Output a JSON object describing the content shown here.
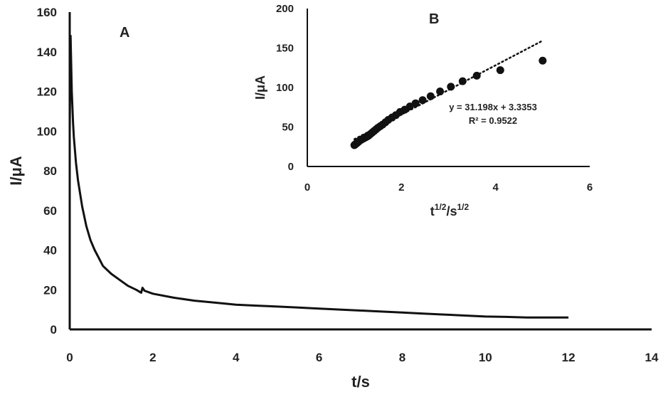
{
  "chart_data": [
    {
      "panel": "A",
      "type": "line",
      "xlabel": "t/s",
      "ylabel": "I/μA",
      "xlim": [
        0,
        14
      ],
      "ylim": [
        0,
        160
      ],
      "xticks": [
        0,
        2,
        4,
        6,
        8,
        10,
        12,
        14
      ],
      "yticks": [
        0,
        20,
        40,
        60,
        80,
        100,
        120,
        140,
        160
      ],
      "grid": false,
      "color": "#111111",
      "series": [
        {
          "x": [
            0.0,
            0.02,
            0.05,
            0.08,
            0.1,
            0.15,
            0.2,
            0.3,
            0.4,
            0.5,
            0.6,
            0.7,
            0.8,
            1.0,
            1.2,
            1.4,
            1.6,
            1.72,
            1.75,
            1.8,
            2.0,
            2.5,
            3.0,
            3.5,
            4.0,
            4.5,
            5.0,
            5.5,
            6.0,
            6.5,
            7.0,
            7.5,
            8.0,
            8.5,
            9.0,
            9.5,
            10.0,
            10.5,
            11.0,
            11.5,
            12.0
          ],
          "y": [
            100,
            148,
            120,
            104,
            97,
            84,
            75,
            62,
            52,
            45,
            40,
            36,
            32,
            28,
            25,
            22,
            20,
            18.5,
            21,
            19.5,
            18,
            16,
            14.5,
            13.5,
            12.5,
            12,
            11.5,
            11,
            10.5,
            10,
            9.5,
            9,
            8.5,
            8,
            7.5,
            7,
            6.5,
            6.3,
            6,
            6,
            6
          ]
        }
      ]
    },
    {
      "panel": "B",
      "type": "scatter",
      "xlabel": "t",
      "xlabel_sup1": "1/2",
      "xlabel_mid": "/s",
      "xlabel_sup2": "1/2",
      "ylabel": "I/μA",
      "xlim": [
        0,
        6
      ],
      "ylim": [
        0,
        200
      ],
      "xticks": [
        0,
        2,
        4,
        6
      ],
      "yticks": [
        0,
        50,
        100,
        150,
        200
      ],
      "grid": false,
      "color": "#111111",
      "points": {
        "x": [
          1.0,
          1.02,
          1.04,
          1.06,
          1.08,
          1.1,
          1.12,
          1.15,
          1.18,
          1.21,
          1.24,
          1.27,
          1.3,
          1.34,
          1.38,
          1.42,
          1.46,
          1.5,
          1.55,
          1.6,
          1.66,
          1.72,
          1.8,
          1.88,
          1.97,
          2.07,
          2.18,
          2.3,
          2.45,
          2.62,
          2.82,
          3.05,
          3.3,
          3.6,
          4.1,
          5.0
        ],
        "y": [
          27,
          28,
          29,
          30,
          31,
          32,
          33,
          34,
          35,
          36,
          37,
          38,
          39,
          41,
          43,
          45,
          47,
          49,
          51,
          53,
          56,
          59,
          62,
          65,
          69,
          72,
          76,
          80,
          84,
          89,
          95,
          101,
          108,
          115,
          122,
          134
        ]
      },
      "trendline": {
        "style": "dotted",
        "slope": 31.198,
        "intercept": 3.3353,
        "x_range": [
          1.0,
          5.0
        ],
        "equation": "y = 31.198x + 3.3353",
        "r_squared": "R² = 0.9522"
      }
    }
  ]
}
